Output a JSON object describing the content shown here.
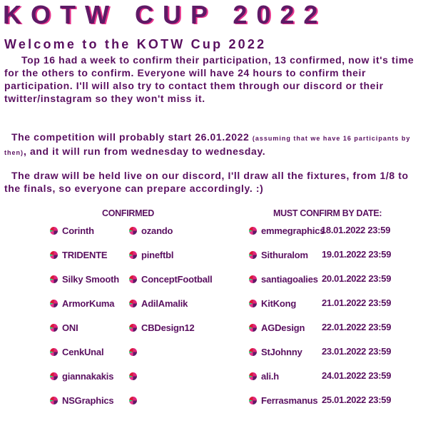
{
  "title": "KOTW CUP 2022",
  "subtitle": "Welcome to the KOTW Cup 2022",
  "paragraphs": {
    "p1": "Top 16 had a week to confirm their participation, 13 confirmed, now it's time for the others to confirm. Everyone will have 24 hours to confirm their participation. I'll will also try to contact them through our discord or their twitter/instagram so they won't miss it.",
    "p2a": "The competition will probably start 26.01.2022 ",
    "p2small": "(assuming that we have 16 participants by then)",
    "p2b": ", and it will run from wednesday to wednesday.",
    "p3": "The draw will be held live on our discord, I'll draw all the fixtures, from 1/8 to the finals, so everyone can prepare accordingly. :)"
  },
  "confirmed": {
    "header": "CONFIRMED",
    "col1": [
      "Corinth",
      "TRIDENTE",
      "Silky Smooth",
      "ArmorKuma",
      "ONI",
      "CenkUnal",
      "giannakakis",
      "NSGraphics"
    ],
    "col2": [
      "ozando",
      "pineftbl",
      "ConceptFootball",
      "AdilAmalik",
      "CBDesign12",
      "",
      "",
      ""
    ]
  },
  "must_confirm": {
    "header": "MUST CONFIRM BY DATE:",
    "items": [
      {
        "name": "emmegraphics",
        "date": "18.01.2022 23:59"
      },
      {
        "name": "Sithuralom",
        "date": "19.01.2022 23:59"
      },
      {
        "name": "santiagoalies",
        "date": "20.01.2022 23:59"
      },
      {
        "name": "KitKong",
        "date": "21.01.2022 23:59"
      },
      {
        "name": "AGDesign",
        "date": "22.01.2022 23:59"
      },
      {
        "name": "StJohnny",
        "date": "23.01.2022 23:59"
      },
      {
        "name": "ali.h",
        "date": "24.01.2022 23:59"
      },
      {
        "name": "Ferrasmanus",
        "date": "25.01.2022 23:59"
      }
    ]
  },
  "colors": {
    "text": "#5a1060",
    "accent_pink": "#e8328c",
    "accent_green": "#2ee07a",
    "accent_red": "#d81a3a"
  }
}
